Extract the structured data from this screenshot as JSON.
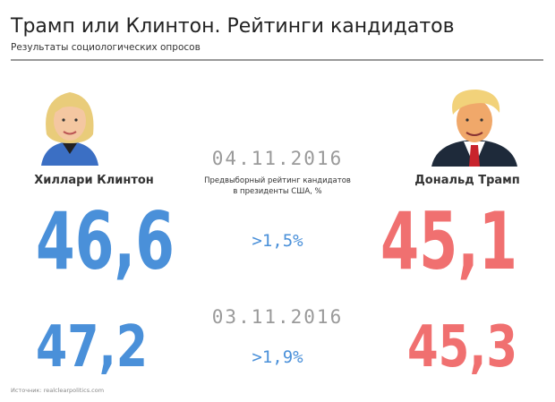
{
  "header": {
    "title": "Трамп или Клинтон. Рейтинги кандидатов",
    "subtitle": "Результаты социологических опросов"
  },
  "candidates": [
    {
      "name": "Хиллари Клинтон"
    },
    {
      "name": "Дональд Трамп"
    }
  ],
  "caption": [
    "Предвыборный рейтинг кандидатов",
    "в президенты США, %"
  ],
  "polls": [
    {
      "date": "04.11.2016",
      "clinton": "46,6",
      "trump": "45,1",
      "lead": ">1,5%"
    },
    {
      "date": "03.11.2016",
      "clinton": "47,2",
      "trump": "45,3",
      "lead": ">1,9%"
    }
  ],
  "source": "Источник: realclearpolitics.com"
}
